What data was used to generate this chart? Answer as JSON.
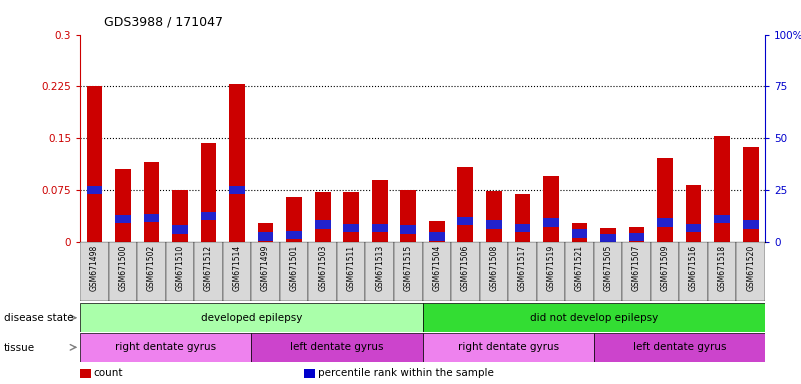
{
  "title": "GDS3988 / 171047",
  "samples": [
    "GSM671498",
    "GSM671500",
    "GSM671502",
    "GSM671510",
    "GSM671512",
    "GSM671514",
    "GSM671499",
    "GSM671501",
    "GSM671503",
    "GSM671511",
    "GSM671513",
    "GSM671515",
    "GSM671504",
    "GSM671506",
    "GSM671508",
    "GSM671517",
    "GSM671519",
    "GSM671521",
    "GSM671505",
    "GSM671507",
    "GSM671509",
    "GSM671516",
    "GSM671518",
    "GSM671520"
  ],
  "red_values": [
    0.225,
    0.105,
    0.115,
    0.075,
    0.143,
    0.228,
    0.028,
    0.065,
    0.072,
    0.072,
    0.09,
    0.075,
    0.03,
    0.108,
    0.073,
    0.07,
    0.095,
    0.028,
    0.02,
    0.022,
    0.122,
    0.082,
    0.153,
    0.138
  ],
  "blue_values": [
    0.075,
    0.033,
    0.035,
    0.018,
    0.038,
    0.075,
    0.008,
    0.01,
    0.025,
    0.02,
    0.02,
    0.018,
    0.008,
    0.03,
    0.025,
    0.02,
    0.028,
    0.012,
    0.005,
    0.007,
    0.028,
    0.02,
    0.033,
    0.025
  ],
  "blue_thickness": 0.012,
  "ylim_left": [
    0,
    0.3
  ],
  "ylim_right": [
    0,
    100
  ],
  "yticks_left": [
    0,
    0.075,
    0.15,
    0.225,
    0.3
  ],
  "yticks_right": [
    0,
    25,
    50,
    75,
    100
  ],
  "ytick_labels_left": [
    "0",
    "0.075",
    "0.15",
    "0.225",
    "0.3"
  ],
  "ytick_labels_right": [
    "0",
    "25",
    "50",
    "75",
    "100%"
  ],
  "hlines": [
    0.075,
    0.15,
    0.225
  ],
  "disease_groups": [
    {
      "label": "developed epilepsy",
      "start": 0,
      "end": 11,
      "color": "#aaffaa"
    },
    {
      "label": "did not develop epilepsy",
      "start": 12,
      "end": 23,
      "color": "#33dd33"
    }
  ],
  "tissue_groups": [
    {
      "label": "right dentate gyrus",
      "start": 0,
      "end": 5,
      "color": "#ee82ee"
    },
    {
      "label": "left dentate gyrus",
      "start": 6,
      "end": 11,
      "color": "#cc44cc"
    },
    {
      "label": "right dentate gyrus",
      "start": 12,
      "end": 17,
      "color": "#ee82ee"
    },
    {
      "label": "left dentate gyrus",
      "start": 18,
      "end": 23,
      "color": "#cc44cc"
    }
  ],
  "legend_items": [
    {
      "label": "count",
      "color": "#cc0000"
    },
    {
      "label": "percentile rank within the sample",
      "color": "#0000cc"
    }
  ],
  "bar_width": 0.55,
  "red_color": "#cc0000",
  "blue_color": "#2222cc",
  "left_label_color": "#cc0000",
  "right_label_color": "#0000cc",
  "background_color": "#ffffff",
  "plot_bg_color": "#ffffff",
  "xtick_bg_color": "#d8d8d8",
  "disease_state_label": "disease state",
  "tissue_label": "tissue",
  "separator_x": [
    11.5
  ],
  "tissue_separators": [
    5.5,
    11.5,
    17.5
  ]
}
